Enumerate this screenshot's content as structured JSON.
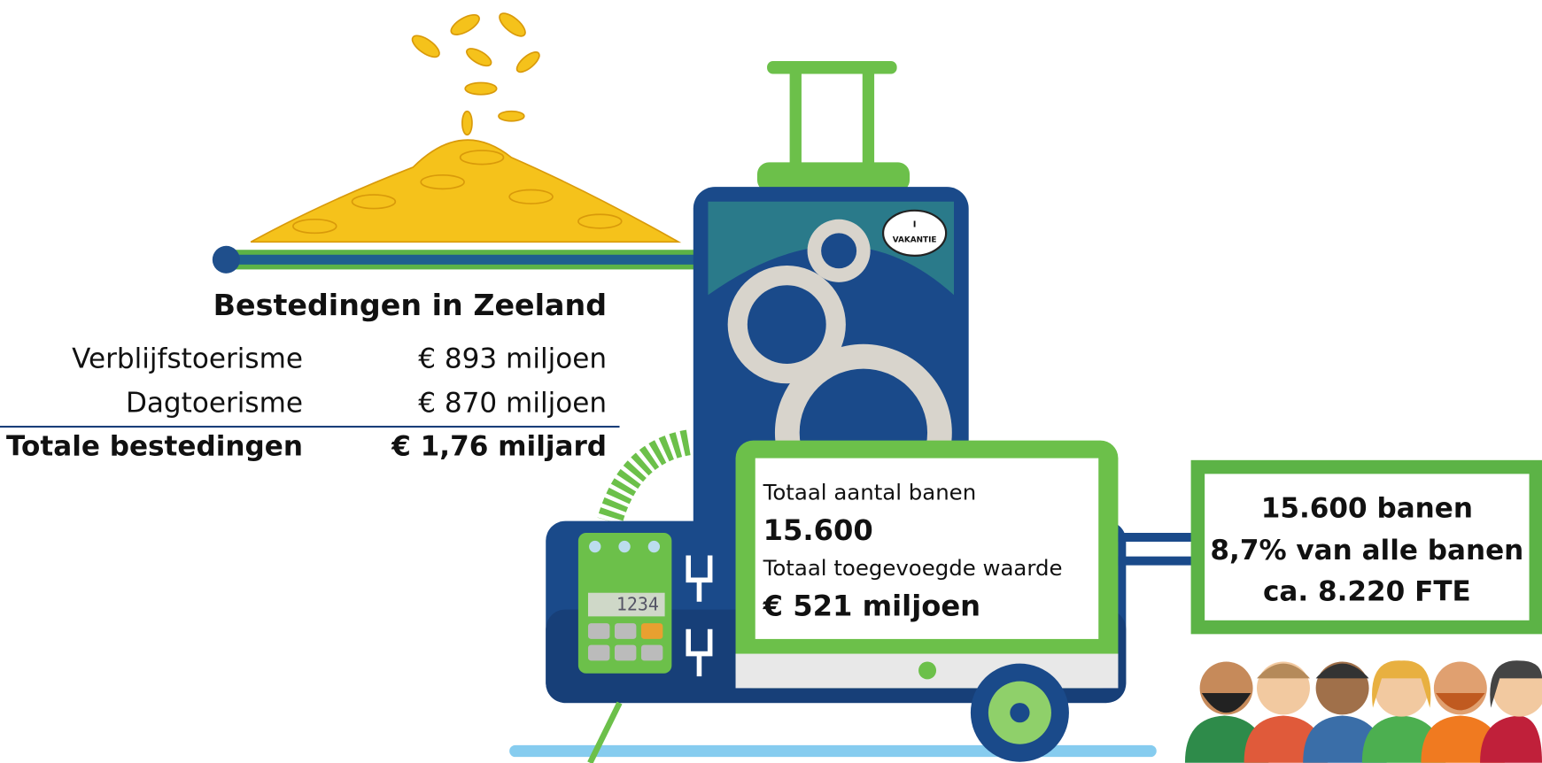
{
  "spending": {
    "title": "Bestedingen in Zeeland",
    "rows": [
      {
        "label": "Verblijfstoerisme",
        "value": "€ 893 miljoen"
      },
      {
        "label": "Dagtoerisme",
        "value": "€ 870 miljoen"
      },
      {
        "label": "Totale bestedingen",
        "value": "€ 1,76 miljard"
      }
    ]
  },
  "sticker": {
    "top": "I",
    "bottom": "VAKANTIE"
  },
  "calculator": {
    "display": "1234"
  },
  "monitor": {
    "jobs_label": "Totaal aantal banen",
    "jobs_value": "15.600",
    "added_value_label": "Totaal toegevoegde waarde",
    "added_value": "€ 521 miljoen"
  },
  "jobs_box": {
    "lines": [
      "15.600 banen",
      "8,7% van alle banen",
      "ca. 8.220 FTE"
    ]
  }
}
